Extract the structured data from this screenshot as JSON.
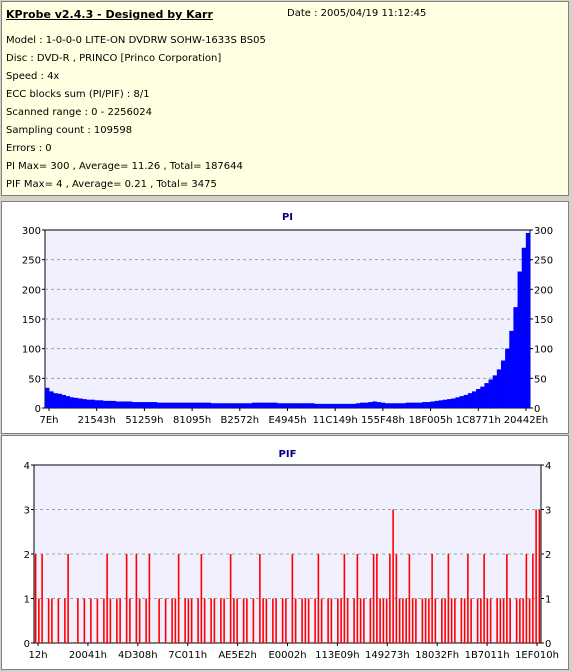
{
  "info": {
    "title": "KProbe v2.4.3 - Designed by Karr",
    "date": "Date : 2005/04/19 11:12:45",
    "lines": [
      "Model : 1-0-0-0 LITE-ON DVDRW SOHW-1633S BS05",
      "Disc : DVD-R , PRINCO [Princo Corporation]",
      "Speed : 4x",
      "ECC blocks sum (PI/PIF) : 8/1",
      "Scanned range : 0 - 2256024",
      "Sampling count : 109598",
      "Errors : 0",
      "PI Max= 300 , Average= 11.26 , Total= 187644",
      "PIF Max= 4 , Average= 0.21 , Total= 3475"
    ]
  },
  "colors": {
    "pi": "#0000ff",
    "pif": "#ff0000",
    "plot_bg": "#f0f0ff",
    "title": "#000080",
    "grid": "#a0a0a0"
  },
  "chart_data": [
    {
      "type": "area",
      "title": "PI",
      "ylim": [
        0,
        300
      ],
      "y_ticks": [
        0,
        50,
        100,
        150,
        200,
        250,
        300
      ],
      "x_tick_labels": [
        "7Eh",
        "21543h",
        "51259h",
        "81095h",
        "B2572h",
        "E4945h",
        "11C149h",
        "155F48h",
        "18F005h",
        "1C8771h",
        "20442Eh"
      ],
      "series": [
        {
          "values": [
            34,
            28,
            25,
            24,
            22,
            20,
            18,
            17,
            16,
            15,
            14,
            14,
            13,
            13,
            12,
            12,
            12,
            11,
            11,
            11,
            11,
            10,
            10,
            10,
            10,
            10,
            10,
            9,
            9,
            9,
            9,
            9,
            9,
            9,
            9,
            9,
            9,
            9,
            9,
            9,
            8,
            8,
            8,
            8,
            8,
            8,
            8,
            8,
            8,
            8,
            9,
            9,
            9,
            9,
            9,
            9,
            8,
            8,
            8,
            8,
            8,
            8,
            8,
            8,
            8,
            7,
            7,
            7,
            7,
            7,
            7,
            7,
            7,
            7,
            7,
            8,
            9,
            9,
            10,
            11,
            10,
            9,
            8,
            8,
            8,
            8,
            8,
            9,
            9,
            9,
            9,
            10,
            10,
            11,
            12,
            13,
            14,
            15,
            16,
            18,
            20,
            22,
            25,
            28,
            32,
            36,
            42,
            48,
            55,
            65,
            80,
            100,
            130,
            170,
            230,
            270,
            295
          ]
        }
      ]
    },
    {
      "type": "bar",
      "title": "PIF",
      "ylim": [
        0,
        4
      ],
      "y_ticks": [
        0,
        1,
        2,
        3,
        4
      ],
      "x_tick_labels": [
        "12h",
        "20041h",
        "4D308h",
        "7C011h",
        "AE5E2h",
        "E0002h",
        "113E09h",
        "149273h",
        "18032Fh",
        "1B7011h",
        "1EF010h"
      ],
      "series": [
        {
          "values": [
            2,
            1,
            2,
            0,
            1,
            1,
            0,
            1,
            0,
            1,
            2,
            0,
            0,
            1,
            0,
            1,
            0,
            1,
            0,
            1,
            0,
            1,
            2,
            1,
            0,
            1,
            1,
            0,
            2,
            1,
            0,
            2,
            1,
            0,
            1,
            2,
            0,
            0,
            1,
            0,
            1,
            0,
            1,
            1,
            2,
            0,
            1,
            1,
            1,
            0,
            1,
            2,
            1,
            0,
            1,
            1,
            0,
            1,
            1,
            0,
            2,
            1,
            1,
            0,
            1,
            1,
            0,
            1,
            0,
            2,
            1,
            1,
            0,
            1,
            1,
            0,
            1,
            1,
            0,
            2,
            1,
            0,
            1,
            1,
            1,
            0,
            1,
            2,
            1,
            0,
            1,
            1,
            0,
            1,
            1,
            2,
            1,
            0,
            1,
            2,
            1,
            1,
            0,
            1,
            2,
            2,
            1,
            1,
            1,
            2,
            3,
            2,
            1,
            1,
            1,
            2,
            1,
            1,
            0,
            1,
            1,
            1,
            2,
            1,
            0,
            1,
            1,
            2,
            1,
            1,
            0,
            1,
            1,
            2,
            1,
            0,
            1,
            1,
            2,
            1,
            1,
            0,
            1,
            1,
            1,
            2,
            1,
            0,
            1,
            1,
            1,
            2,
            1,
            2,
            3,
            3
          ]
        }
      ]
    }
  ]
}
